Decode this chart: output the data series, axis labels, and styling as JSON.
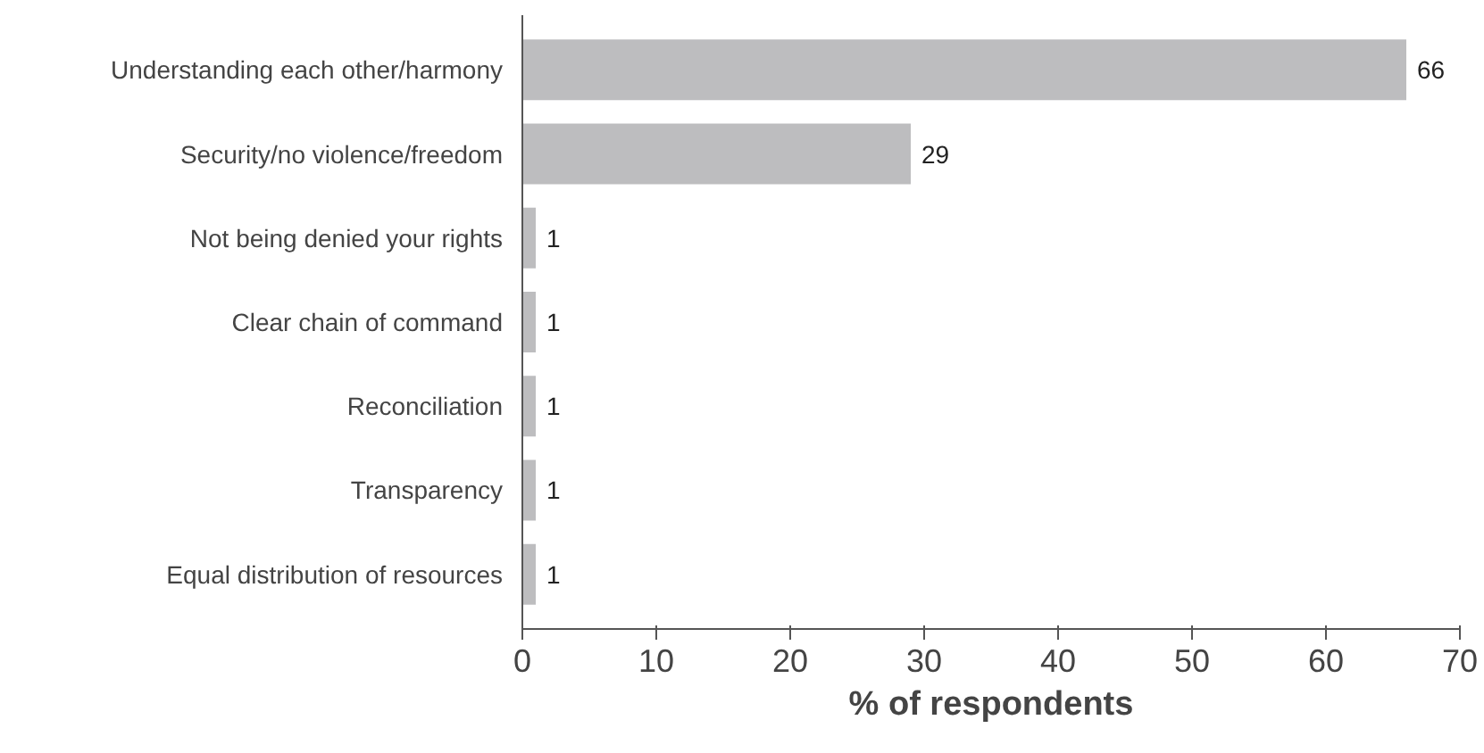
{
  "chart_data": {
    "type": "bar",
    "orientation": "horizontal",
    "categories": [
      "Understanding each other/harmony",
      "Security/no violence/freedom",
      "Not being denied your rights",
      "Clear chain of command",
      "Reconciliation",
      "Transparency",
      "Equal distribution of resources"
    ],
    "values": [
      66,
      29,
      1,
      1,
      1,
      1,
      1
    ],
    "color": "#bdbdbf",
    "data_labels": true,
    "xlabel": "% of respondents",
    "xlim": [
      0,
      70
    ],
    "xticks": [
      0,
      10,
      20,
      30,
      40,
      50,
      60,
      70
    ],
    "grid": false
  }
}
